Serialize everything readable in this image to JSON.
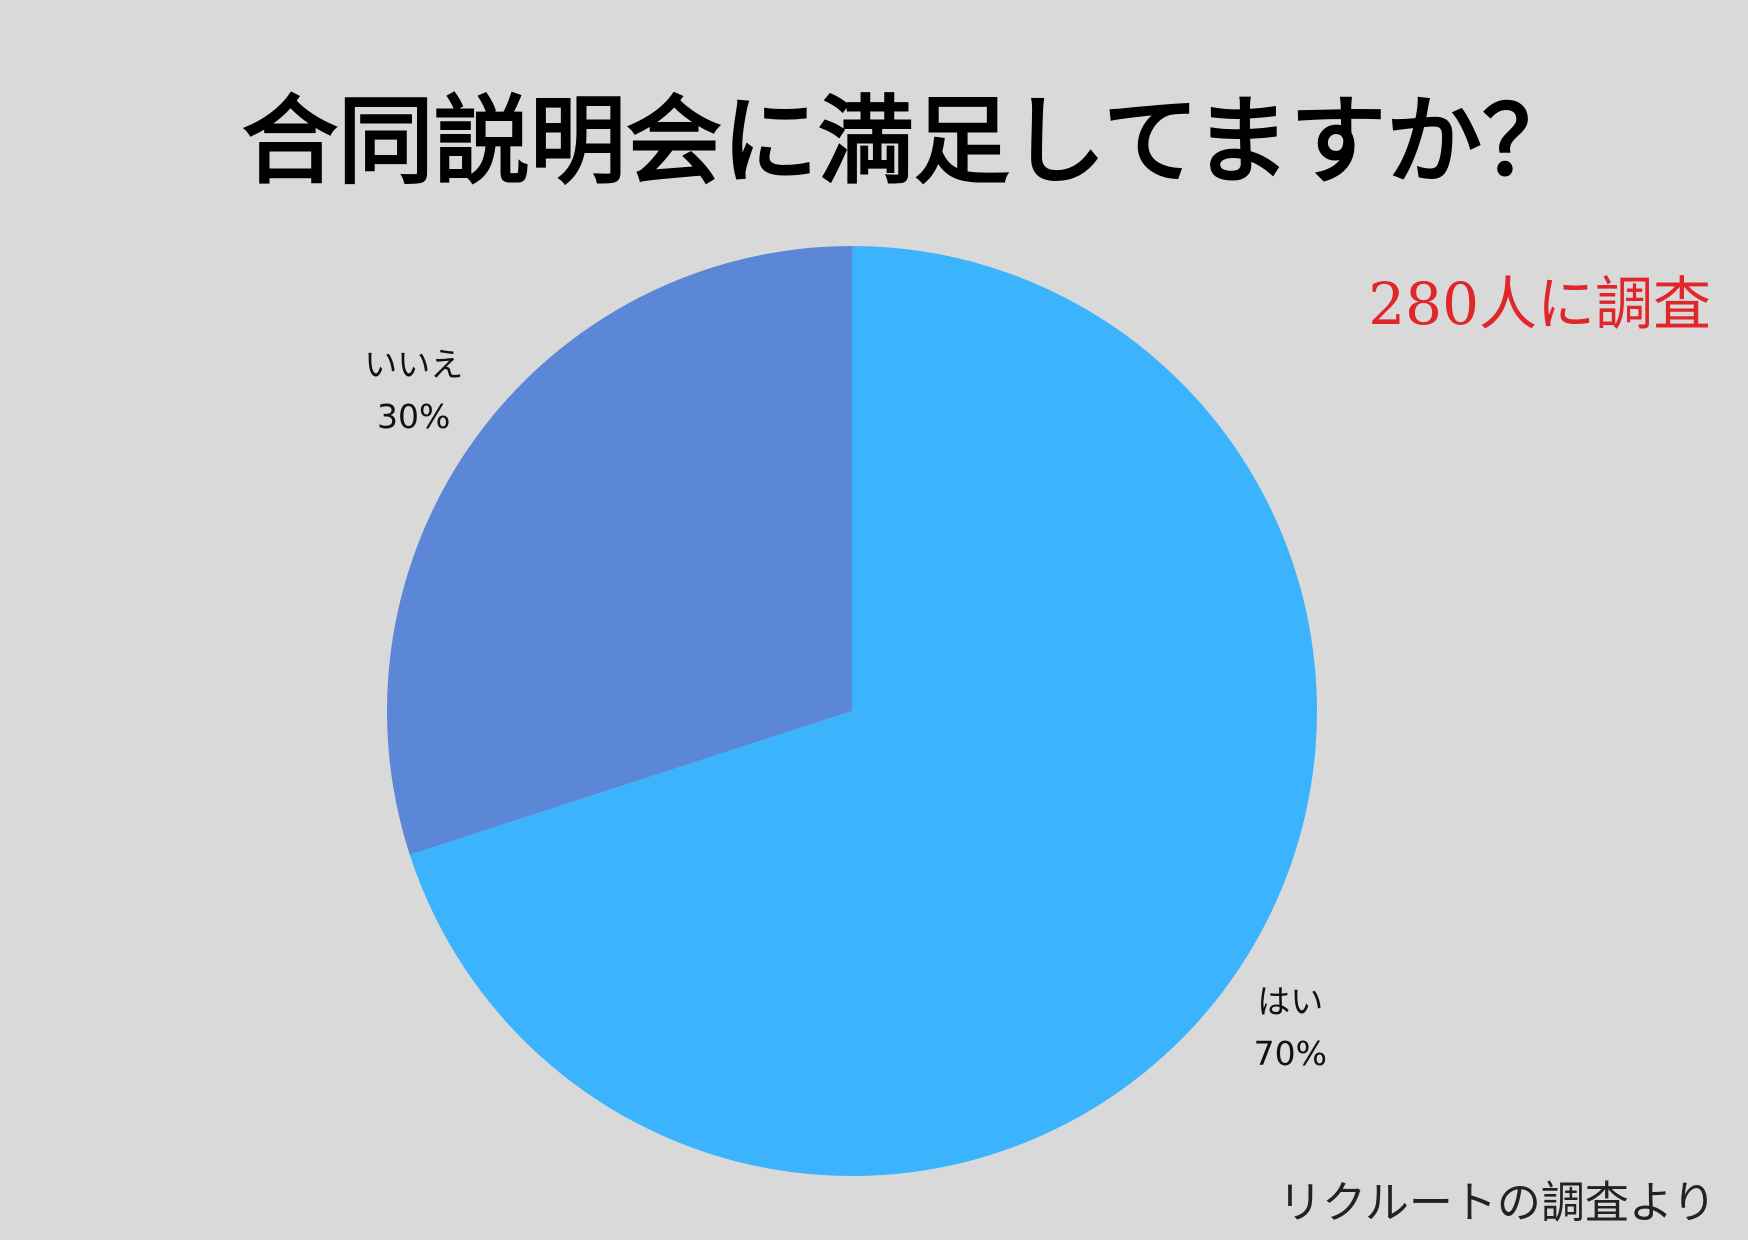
{
  "chart_data": {
    "type": "pie",
    "title": "合同説明会に満足してますか？",
    "annotation": "280人に調査",
    "source": "リクルートの調査より",
    "categories": [
      "はい",
      "いいえ"
    ],
    "values": [
      70,
      30
    ],
    "value_labels": [
      "70%",
      "30%"
    ],
    "colors": [
      "#3bb3fd",
      "#5b87d6"
    ]
  }
}
